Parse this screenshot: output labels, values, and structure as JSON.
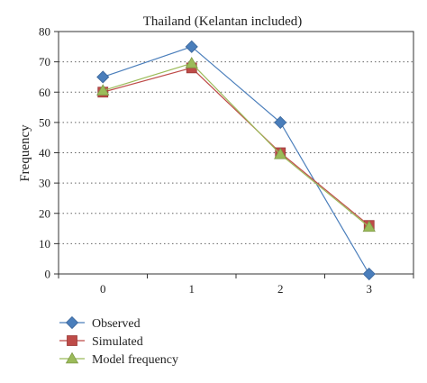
{
  "chart_data": {
    "type": "line",
    "title": "Thailand  (Kelantan included)",
    "xlabel": "",
    "ylabel": "Frequency",
    "x": [
      0,
      1,
      2,
      3
    ],
    "ylim": [
      0,
      80
    ],
    "yticks": [
      0,
      10,
      20,
      30,
      40,
      50,
      60,
      70,
      80
    ],
    "grid": "horizontal dotted",
    "legend_position": "bottom-left",
    "series": [
      {
        "name": "Observed",
        "values": [
          65,
          75,
          50,
          0
        ],
        "color": "#4a7ebb",
        "marker": "diamond"
      },
      {
        "name": "Simulated",
        "values": [
          60,
          68,
          40,
          16
        ],
        "color": "#be4b48",
        "marker": "square"
      },
      {
        "name": "Model frequency",
        "values": [
          60.5,
          69.5,
          39.5,
          15.5
        ],
        "color": "#9bbb59",
        "marker": "triangle"
      }
    ]
  }
}
